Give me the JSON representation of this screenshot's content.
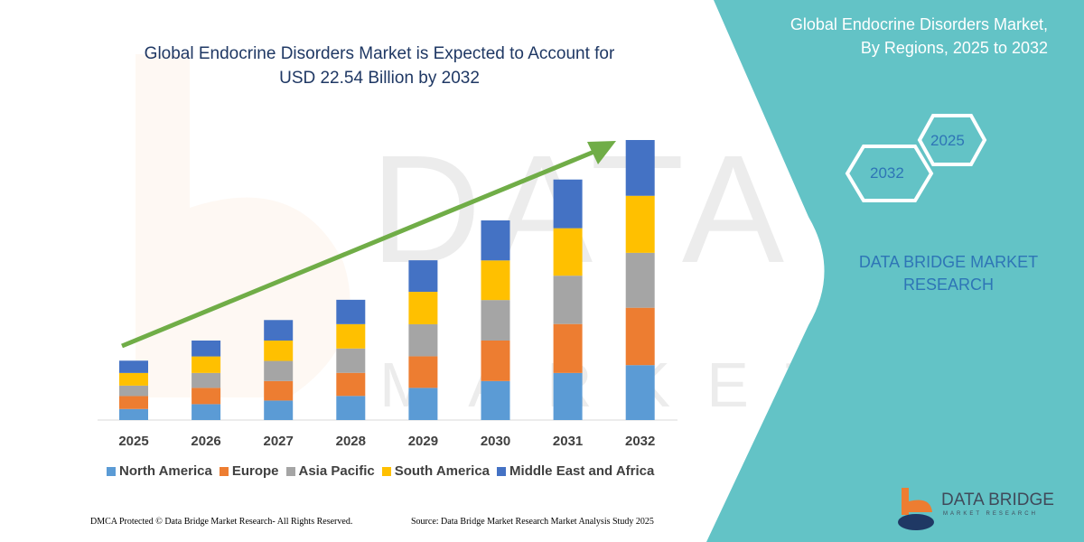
{
  "header": {
    "title_line1": "Global Endocrine Disorders Market is Expected to Account for",
    "title_line2": "USD 22.54 Billion by 2032"
  },
  "side_panel": {
    "title_line1": "Global Endocrine Disorders Market,",
    "title_line2": "By Regions, 2025 to 2032",
    "hex_start": "2025",
    "hex_end": "2032",
    "brand_line1": "DATA BRIDGE MARKET",
    "brand_line2": "RESEARCH",
    "logo_name": "DATA BRIDGE",
    "logo_sub": "MARKET RESEARCH",
    "panel_color": "#63c3c6"
  },
  "footer": {
    "copyright": "DMCA Protected © Data Bridge Market Research-  All Rights Reserved.",
    "source": "Source: Data Bridge Market Research  Market Analysis Study 2025"
  },
  "chart_data": {
    "type": "bar",
    "stacked": true,
    "title": "Global Endocrine Disorders Market is Expected to Account for USD 22.54 Billion by 2032",
    "xlabel": "",
    "ylabel": "",
    "grid": false,
    "legend_position": "bottom",
    "trend_arrow": true,
    "categories": [
      "2025",
      "2026",
      "2027",
      "2028",
      "2029",
      "2030",
      "2031",
      "2032"
    ],
    "series": [
      {
        "name": "North America",
        "color": "#5b9bd5",
        "values": [
          0.89,
          1.28,
          1.57,
          1.94,
          2.59,
          3.14,
          3.79,
          4.42
        ]
      },
      {
        "name": "Europe",
        "color": "#ed7d31",
        "values": [
          1.04,
          1.31,
          1.57,
          1.86,
          2.54,
          3.26,
          3.94,
          4.62
        ]
      },
      {
        "name": "Asia Pacific",
        "color": "#a5a5a5",
        "values": [
          0.84,
          1.2,
          1.62,
          1.96,
          2.58,
          3.26,
          3.89,
          4.42
        ]
      },
      {
        "name": "South America",
        "color": "#ffc000",
        "values": [
          1.02,
          1.33,
          1.64,
          1.96,
          2.61,
          3.19,
          3.82,
          4.59
        ]
      },
      {
        "name": "Middle East and Africa",
        "color": "#4472c4",
        "values": [
          0.99,
          1.28,
          1.65,
          1.96,
          2.54,
          3.22,
          3.92,
          4.49
        ]
      }
    ]
  }
}
